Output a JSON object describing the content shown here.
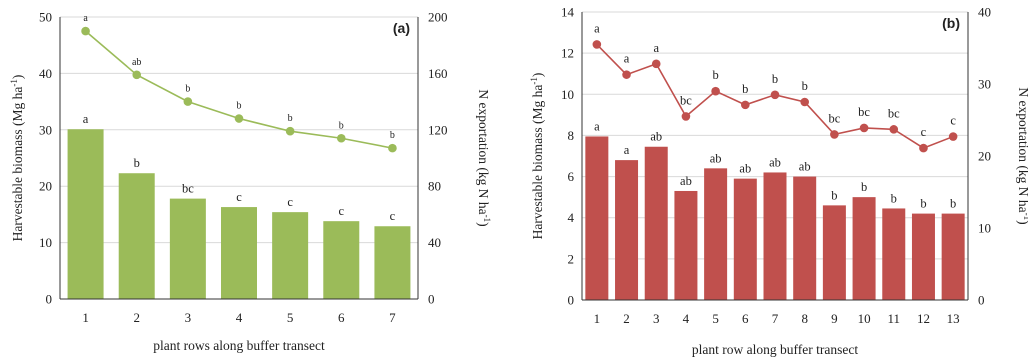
{
  "chart_data": [
    {
      "type": "bar",
      "panel_label": "(a)",
      "xlabel": "plant rows along buffer transect",
      "ylabel": "Harvestable biomass (Mg ha",
      "ylabel_sup": "-1",
      "ylabel_end": ")",
      "y2label": "N exportation (kg N ha",
      "y2label_sup": "-1",
      "y2label_end": ")",
      "categories": [
        "1",
        "2",
        "3",
        "4",
        "5",
        "6",
        "7"
      ],
      "ylim": [
        0,
        50
      ],
      "yticks": [
        "0",
        "10",
        "20",
        "30",
        "40",
        "50"
      ],
      "y2lim": [
        0,
        200
      ],
      "y2ticks": [
        "0",
        "40",
        "80",
        "120",
        "160",
        "200"
      ],
      "grid": true,
      "colors": {
        "bar": "#9bbb59",
        "line": "#9bbb59"
      },
      "series": [
        {
          "kind": "bar",
          "axis": "left",
          "values": [
            30.1,
            22.3,
            17.8,
            16.3,
            15.4,
            13.8,
            12.9
          ],
          "letters": [
            "a",
            "b",
            "bc",
            "c",
            "c",
            "c",
            "c"
          ]
        },
        {
          "kind": "line",
          "axis": "right",
          "values": [
            190,
            159,
            140,
            128,
            119,
            114,
            107
          ],
          "letters": [
            "a",
            "ab",
            "b",
            "b",
            "b",
            "b",
            "b"
          ]
        }
      ]
    },
    {
      "type": "bar",
      "panel_label": "(b)",
      "xlabel": "plant row along buffer transect",
      "ylabel": "Harvestable biomass (Mg ha",
      "ylabel_sup": "-1",
      "ylabel_end": ")",
      "y2label": "N exportation (kg N ha",
      "y2label_sup": "-1",
      "y2label_end": ")",
      "categories": [
        "1",
        "2",
        "3",
        "4",
        "5",
        "6",
        "7",
        "8",
        "9",
        "10",
        "11",
        "12",
        "13"
      ],
      "ylim": [
        0,
        14
      ],
      "yticks": [
        "0",
        "2",
        "4",
        "6",
        "8",
        "10",
        "12",
        "14"
      ],
      "y2lim": [
        0,
        40
      ],
      "y2ticks": [
        "0",
        "10",
        "20",
        "30",
        "40"
      ],
      "grid": true,
      "colors": {
        "bar": "#c0504d",
        "line": "#c0504d"
      },
      "series": [
        {
          "kind": "bar",
          "axis": "left",
          "values": [
            7.95,
            6.8,
            7.45,
            5.3,
            6.4,
            5.9,
            6.2,
            6.0,
            4.6,
            5.0,
            4.45,
            4.2,
            4.2
          ],
          "letters": [
            "a",
            "a",
            "ab",
            "ab",
            "ab",
            "ab",
            "ab",
            "ab",
            "b",
            "b",
            "b",
            "b",
            "b"
          ]
        },
        {
          "kind": "line",
          "axis": "right",
          "values": [
            35.5,
            31.3,
            32.8,
            25.5,
            29.0,
            27.1,
            28.5,
            27.5,
            23.0,
            23.9,
            23.7,
            21.1,
            22.7
          ],
          "letters": [
            "a",
            "a",
            "a",
            "bc",
            "b",
            "b",
            "b",
            "b",
            "bc",
            "bc",
            "bc",
            "c",
            "c"
          ]
        }
      ]
    }
  ]
}
